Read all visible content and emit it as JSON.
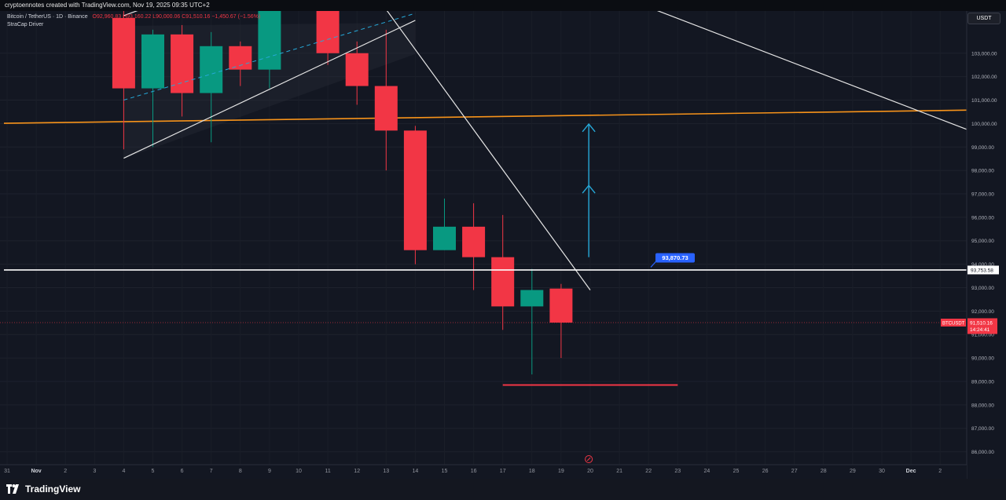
{
  "watermark": "cryptoennotes created with TradingView.com, Nov 19, 2025 09:35 UTC+2",
  "legend": {
    "symbol": "Bitcoin / TetherUS · 1D · Binance",
    "ohlc": "O92,960.83 H93,160.22 L90,000.06 C91,510.16 −1,450.67 (−1.56%)",
    "indicator": "StraCap Driver"
  },
  "currency_button": "USDT",
  "footer_brand": "TradingView",
  "colors": {
    "background": "#131722",
    "up": "#089981",
    "down": "#f23645",
    "resistance": "#f7931a",
    "trend": "#ffffff",
    "arrow": "#26a9d9",
    "label_blue": "#2962ff"
  },
  "chart_data": {
    "type": "candlestick",
    "title": "Bitcoin / TetherUS · 1D · Binance",
    "y_axis": {
      "ylim": [
        85450,
        104800
      ],
      "ticks": [
        103000,
        102000,
        101000,
        100000,
        99000,
        98000,
        97000,
        96000,
        95000,
        94000,
        93000,
        92000,
        91000,
        90000,
        89000,
        88000,
        87000,
        86000
      ],
      "tick_labels": [
        "103,000.00",
        "102,000.00",
        "101,000.00",
        "100,000.00",
        "99,000.00",
        "98,000.00",
        "97,000.00",
        "96,000.00",
        "95,000.00",
        "94,000.00",
        "93,000.00",
        "92,000.00",
        "91,000.00",
        "90,000.00",
        "89,000.00",
        "88,000.00",
        "87,000.00",
        "86,000.00"
      ]
    },
    "x_axis": {
      "labels": [
        "31",
        "Nov",
        "2",
        "3",
        "4",
        "5",
        "6",
        "7",
        "8",
        "9",
        "10",
        "11",
        "12",
        "13",
        "14",
        "15",
        "16",
        "17",
        "18",
        "19",
        "20",
        "21",
        "22",
        "23",
        "24",
        "25",
        "26",
        "27",
        "28",
        "29",
        "30",
        "Dec",
        "2"
      ],
      "slot_of_first_label": -1,
      "last_slot": 31
    },
    "candles": [
      {
        "slot": 3,
        "date": "4",
        "open": 104500,
        "high": 106000,
        "low": 98900,
        "close": 101500
      },
      {
        "slot": 4,
        "date": "5",
        "open": 101500,
        "high": 104000,
        "low": 99000,
        "close": 103800
      },
      {
        "slot": 5,
        "date": "6",
        "open": 103800,
        "high": 104200,
        "low": 100300,
        "close": 101300
      },
      {
        "slot": 6,
        "date": "7",
        "open": 101300,
        "high": 103900,
        "low": 99200,
        "close": 103300
      },
      {
        "slot": 7,
        "date": "8",
        "open": 103300,
        "high": 103500,
        "low": 101600,
        "close": 102300
      },
      {
        "slot": 8,
        "date": "9",
        "open": 102300,
        "high": 105700,
        "low": 101500,
        "close": 105200
      },
      {
        "slot": 10,
        "date": "11",
        "open": 105000,
        "high": 105600,
        "low": 102500,
        "close": 103000
      },
      {
        "slot": 11,
        "date": "12",
        "open": 103000,
        "high": 103500,
        "low": 100800,
        "close": 101600
      },
      {
        "slot": 12,
        "date": "13",
        "open": 101600,
        "high": 104000,
        "low": 98000,
        "close": 99700
      },
      {
        "slot": 13,
        "date": "14",
        "open": 99700,
        "high": 99900,
        "low": 94000,
        "close": 94600
      },
      {
        "slot": 14,
        "date": "15",
        "open": 94600,
        "high": 96800,
        "low": 94600,
        "close": 95600
      },
      {
        "slot": 15,
        "date": "16",
        "open": 95600,
        "high": 96600,
        "low": 92900,
        "close": 94300
      },
      {
        "slot": 16,
        "date": "17",
        "open": 94300,
        "high": 96100,
        "low": 91200,
        "close": 92200
      },
      {
        "slot": 17,
        "date": "18",
        "open": 92200,
        "high": 93800,
        "low": 89300,
        "close": 92900
      },
      {
        "slot": 18,
        "date": "19",
        "open": 92960.83,
        "high": 93160.22,
        "low": 90000.06,
        "close": 91510.16
      }
    ],
    "levels": {
      "support_line": {
        "value": 93753.58,
        "label": "93,753.58"
      },
      "callout": {
        "value": 93870.73,
        "label": "93,870.73"
      },
      "last_price": {
        "value": 91510.16,
        "symbol": "BTCUSDT",
        "price_label": "91,510.16",
        "countdown": "14:24:41"
      },
      "target_low": {
        "value": 88850
      }
    }
  }
}
